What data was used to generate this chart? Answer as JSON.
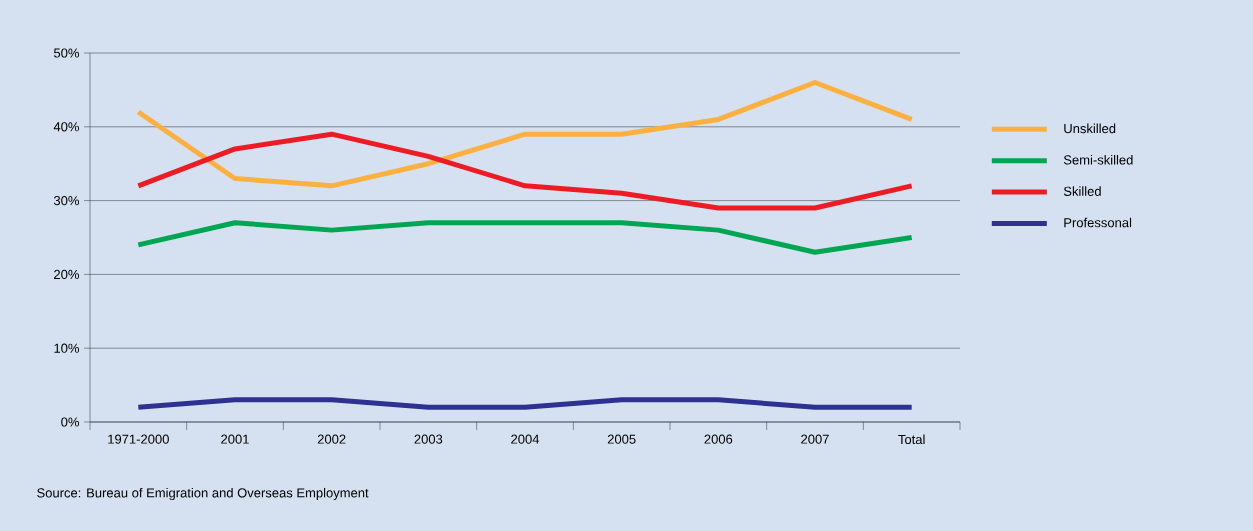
{
  "chart_data": {
    "type": "line",
    "categories": [
      "1971-2000",
      "2001",
      "2002",
      "2003",
      "2004",
      "2005",
      "2006",
      "2007",
      "Total"
    ],
    "series": [
      {
        "name": "Unskilled",
        "color": "#fbb040",
        "values": [
          42,
          33,
          32,
          35,
          39,
          39,
          41,
          46,
          41
        ]
      },
      {
        "name": "Semi-skilled",
        "color": "#00a651",
        "values": [
          24,
          27,
          26,
          27,
          27,
          27,
          26,
          23,
          25
        ]
      },
      {
        "name": "Skilled",
        "color": "#ed1c24",
        "values": [
          32,
          37,
          39,
          36,
          32,
          31,
          29,
          29,
          32
        ]
      },
      {
        "name": "Professonal",
        "color": "#2e3192",
        "values": [
          2,
          3,
          3,
          2,
          2,
          3,
          3,
          2,
          2
        ]
      }
    ],
    "ylim": [
      0,
      50
    ],
    "yticks": [
      {
        "value": 0,
        "label": "0%"
      },
      {
        "value": 10,
        "label": "10%"
      },
      {
        "value": 20,
        "label": "20%"
      },
      {
        "value": 30,
        "label": "30%"
      },
      {
        "value": 40,
        "label": "40%"
      },
      {
        "value": 50,
        "label": "50%"
      }
    ],
    "grid": "y",
    "legend": "right",
    "marker": "none",
    "line_style": "solid",
    "annotations": [
      "Source: Bureau of Emigration and Overseas Employment"
    ]
  }
}
